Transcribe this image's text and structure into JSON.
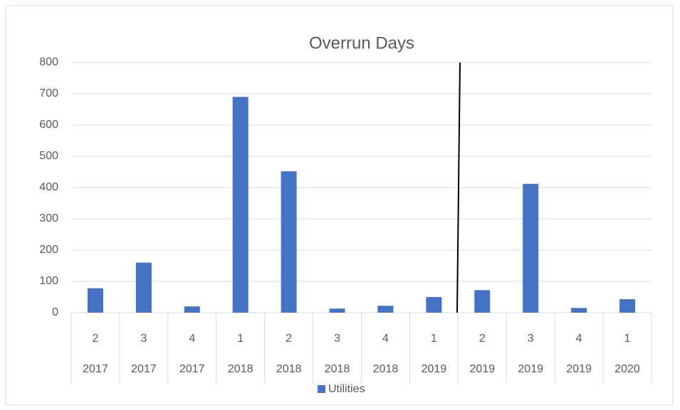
{
  "chart_data": {
    "type": "bar",
    "title": "Overrun Days",
    "categories": [
      "2",
      "3",
      "4",
      "1",
      "2",
      "3",
      "4",
      "1",
      "2",
      "3",
      "4",
      "1"
    ],
    "category_groups": [
      "2017",
      "2017",
      "2017",
      "2018",
      "2018",
      "2018",
      "2018",
      "2019",
      "2019",
      "2019",
      "2019",
      "2020"
    ],
    "series": [
      {
        "name": "Utilities",
        "color": "#4472c4",
        "values": [
          78,
          160,
          20,
          690,
          452,
          13,
          22,
          50,
          72,
          412,
          15,
          43
        ]
      }
    ],
    "ylim": [
      0,
      800
    ],
    "yticks": [
      0,
      100,
      200,
      300,
      400,
      500,
      600,
      700,
      800
    ],
    "grid": true,
    "legend": "bottom"
  }
}
